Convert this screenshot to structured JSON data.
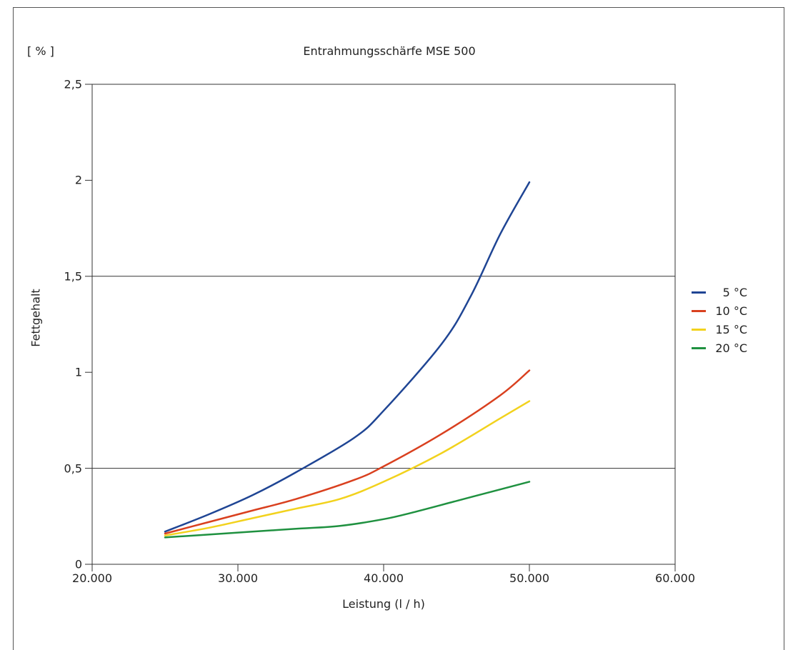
{
  "chart_data": {
    "type": "line",
    "title": "Entrahmungsschärfe MSE 500",
    "unit_label": "[ % ]",
    "xlabel": "Leistung (l / h)",
    "ylabel": "Fettgehalt",
    "xlim": [
      20000,
      60000
    ],
    "ylim": [
      0,
      2.5
    ],
    "x_ticks": [
      "20.000",
      "30.000",
      "40.000",
      "50.000",
      "60.000"
    ],
    "y_ticks": [
      "0",
      "0,5",
      "1",
      "1,5",
      "2",
      "2,5"
    ],
    "gridlines_y": [
      0.5,
      1.5
    ],
    "legend_position": "right",
    "series": [
      {
        "name": "5 °C",
        "color": "#1f4594",
        "x": [
          25000,
          28000,
          31000,
          34000,
          38000,
          40000,
          44000,
          46000,
          48000,
          50000
        ],
        "y": [
          0.17,
          0.26,
          0.36,
          0.48,
          0.66,
          0.8,
          1.15,
          1.4,
          1.72,
          1.99
        ]
      },
      {
        "name": "10 °C",
        "color": "#d9401f",
        "x": [
          25000,
          28000,
          31000,
          34000,
          38000,
          40000,
          44000,
          48000,
          50000
        ],
        "y": [
          0.16,
          0.22,
          0.28,
          0.34,
          0.44,
          0.51,
          0.68,
          0.88,
          1.01
        ]
      },
      {
        "name": "15 °C",
        "color": "#f2d21d",
        "x": [
          25000,
          28000,
          31000,
          34000,
          37000,
          40000,
          44000,
          48000,
          50000
        ],
        "y": [
          0.15,
          0.19,
          0.24,
          0.29,
          0.34,
          0.43,
          0.58,
          0.76,
          0.85
        ]
      },
      {
        "name": "20 °C",
        "color": "#1f9140",
        "x": [
          25000,
          28000,
          31000,
          34000,
          37000,
          40000,
          42000,
          45000,
          48000,
          50000
        ],
        "y": [
          0.14,
          0.155,
          0.17,
          0.185,
          0.2,
          0.235,
          0.27,
          0.33,
          0.39,
          0.43
        ]
      }
    ]
  }
}
